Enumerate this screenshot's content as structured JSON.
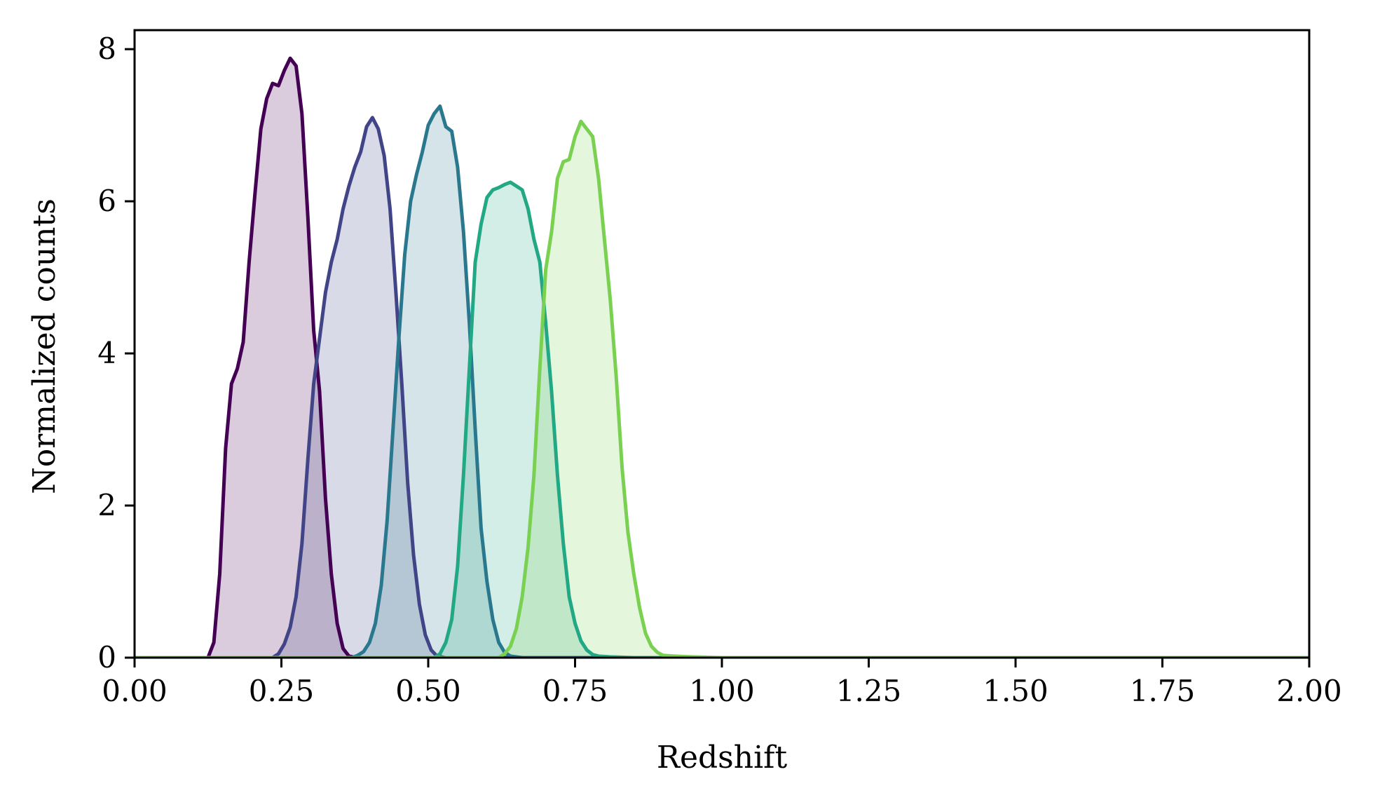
{
  "chart_data": {
    "type": "area",
    "title": "",
    "xlabel": "Redshift",
    "ylabel": "Normalized counts",
    "xlim": [
      0,
      2
    ],
    "ylim": [
      0,
      8.25
    ],
    "grid": false,
    "legend": "none",
    "x_ticks": [
      "0.00",
      "0.25",
      "0.50",
      "0.75",
      "1.00",
      "1.25",
      "1.50",
      "1.75",
      "2.00"
    ],
    "y_ticks": [
      "0",
      "2",
      "4",
      "6",
      "8"
    ],
    "series": [
      {
        "color": "#440154",
        "fill_opacity": 0.2,
        "points": [
          [
            0.0,
            0
          ],
          [
            0.125,
            0
          ],
          [
            0.135,
            0.2
          ],
          [
            0.145,
            1.1
          ],
          [
            0.155,
            2.75
          ],
          [
            0.165,
            3.6
          ],
          [
            0.175,
            3.8
          ],
          [
            0.185,
            4.15
          ],
          [
            0.195,
            5.2
          ],
          [
            0.205,
            6.1
          ],
          [
            0.215,
            6.95
          ],
          [
            0.225,
            7.35
          ],
          [
            0.235,
            7.55
          ],
          [
            0.245,
            7.52
          ],
          [
            0.255,
            7.72
          ],
          [
            0.265,
            7.88
          ],
          [
            0.275,
            7.78
          ],
          [
            0.285,
            7.15
          ],
          [
            0.295,
            5.8
          ],
          [
            0.305,
            4.3
          ],
          [
            0.315,
            3.5
          ],
          [
            0.325,
            2.1
          ],
          [
            0.335,
            1.1
          ],
          [
            0.345,
            0.45
          ],
          [
            0.355,
            0.12
          ],
          [
            0.365,
            0.02
          ],
          [
            0.38,
            0
          ],
          [
            2.0,
            0
          ]
        ]
      },
      {
        "color": "#414487",
        "fill_opacity": 0.2,
        "points": [
          [
            0.0,
            0
          ],
          [
            0.235,
            0
          ],
          [
            0.245,
            0.05
          ],
          [
            0.255,
            0.18
          ],
          [
            0.265,
            0.4
          ],
          [
            0.275,
            0.8
          ],
          [
            0.285,
            1.5
          ],
          [
            0.295,
            2.6
          ],
          [
            0.305,
            3.6
          ],
          [
            0.315,
            4.2
          ],
          [
            0.325,
            4.8
          ],
          [
            0.335,
            5.2
          ],
          [
            0.345,
            5.5
          ],
          [
            0.355,
            5.9
          ],
          [
            0.365,
            6.2
          ],
          [
            0.375,
            6.45
          ],
          [
            0.385,
            6.65
          ],
          [
            0.395,
            6.98
          ],
          [
            0.405,
            7.1
          ],
          [
            0.415,
            6.95
          ],
          [
            0.425,
            6.6
          ],
          [
            0.435,
            5.9
          ],
          [
            0.445,
            4.8
          ],
          [
            0.455,
            3.6
          ],
          [
            0.465,
            2.3
          ],
          [
            0.475,
            1.35
          ],
          [
            0.485,
            0.7
          ],
          [
            0.495,
            0.3
          ],
          [
            0.505,
            0.1
          ],
          [
            0.515,
            0.02
          ],
          [
            0.53,
            0
          ],
          [
            2.0,
            0
          ]
        ]
      },
      {
        "color": "#2a788e",
        "fill_opacity": 0.2,
        "points": [
          [
            0.0,
            0
          ],
          [
            0.37,
            0
          ],
          [
            0.38,
            0.03
          ],
          [
            0.39,
            0.08
          ],
          [
            0.4,
            0.2
          ],
          [
            0.41,
            0.45
          ],
          [
            0.42,
            0.95
          ],
          [
            0.43,
            1.8
          ],
          [
            0.44,
            3.0
          ],
          [
            0.45,
            4.2
          ],
          [
            0.46,
            5.3
          ],
          [
            0.47,
            6.0
          ],
          [
            0.48,
            6.35
          ],
          [
            0.49,
            6.65
          ],
          [
            0.5,
            7.0
          ],
          [
            0.51,
            7.15
          ],
          [
            0.52,
            7.25
          ],
          [
            0.53,
            6.98
          ],
          [
            0.54,
            6.92
          ],
          [
            0.55,
            6.45
          ],
          [
            0.56,
            5.6
          ],
          [
            0.57,
            4.4
          ],
          [
            0.58,
            3.0
          ],
          [
            0.59,
            1.7
          ],
          [
            0.6,
            1.0
          ],
          [
            0.61,
            0.5
          ],
          [
            0.62,
            0.2
          ],
          [
            0.63,
            0.07
          ],
          [
            0.64,
            0.02
          ],
          [
            0.66,
            0
          ],
          [
            2.0,
            0
          ]
        ]
      },
      {
        "color": "#22a884",
        "fill_opacity": 0.2,
        "points": [
          [
            0.0,
            0
          ],
          [
            0.51,
            0
          ],
          [
            0.52,
            0.05
          ],
          [
            0.53,
            0.2
          ],
          [
            0.54,
            0.5
          ],
          [
            0.55,
            1.2
          ],
          [
            0.56,
            2.4
          ],
          [
            0.57,
            3.8
          ],
          [
            0.58,
            5.2
          ],
          [
            0.59,
            5.7
          ],
          [
            0.6,
            6.05
          ],
          [
            0.61,
            6.15
          ],
          [
            0.62,
            6.18
          ],
          [
            0.63,
            6.22
          ],
          [
            0.64,
            6.25
          ],
          [
            0.65,
            6.2
          ],
          [
            0.66,
            6.15
          ],
          [
            0.67,
            5.9
          ],
          [
            0.68,
            5.5
          ],
          [
            0.69,
            5.2
          ],
          [
            0.7,
            4.4
          ],
          [
            0.71,
            3.5
          ],
          [
            0.72,
            2.4
          ],
          [
            0.73,
            1.5
          ],
          [
            0.74,
            0.8
          ],
          [
            0.75,
            0.45
          ],
          [
            0.76,
            0.22
          ],
          [
            0.77,
            0.1
          ],
          [
            0.78,
            0.04
          ],
          [
            0.79,
            0.02
          ],
          [
            0.81,
            0.01
          ],
          [
            0.85,
            0
          ],
          [
            2.0,
            0
          ]
        ]
      },
      {
        "color": "#7ad151",
        "fill_opacity": 0.2,
        "points": [
          [
            0.0,
            0
          ],
          [
            0.62,
            0
          ],
          [
            0.63,
            0.05
          ],
          [
            0.64,
            0.15
          ],
          [
            0.65,
            0.38
          ],
          [
            0.66,
            0.8
          ],
          [
            0.67,
            1.45
          ],
          [
            0.68,
            2.4
          ],
          [
            0.69,
            3.8
          ],
          [
            0.7,
            5.1
          ],
          [
            0.71,
            5.6
          ],
          [
            0.72,
            6.3
          ],
          [
            0.73,
            6.52
          ],
          [
            0.74,
            6.55
          ],
          [
            0.75,
            6.85
          ],
          [
            0.76,
            7.05
          ],
          [
            0.77,
            6.95
          ],
          [
            0.78,
            6.85
          ],
          [
            0.79,
            6.3
          ],
          [
            0.8,
            5.5
          ],
          [
            0.81,
            4.7
          ],
          [
            0.82,
            3.7
          ],
          [
            0.83,
            2.5
          ],
          [
            0.84,
            1.65
          ],
          [
            0.85,
            1.1
          ],
          [
            0.86,
            0.65
          ],
          [
            0.87,
            0.32
          ],
          [
            0.88,
            0.15
          ],
          [
            0.89,
            0.07
          ],
          [
            0.9,
            0.03
          ],
          [
            0.92,
            0.02
          ],
          [
            0.95,
            0.01
          ],
          [
            1.0,
            0
          ],
          [
            2.0,
            0
          ]
        ]
      }
    ]
  }
}
